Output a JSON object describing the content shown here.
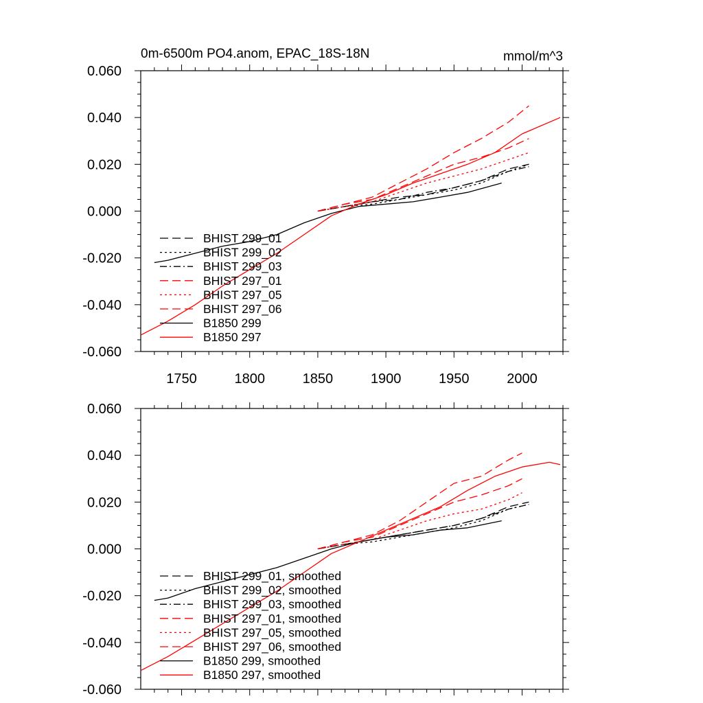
{
  "colors": {
    "black": "#000000",
    "red": "#ff0000",
    "background": "#ffffff"
  },
  "chart_data": [
    {
      "type": "line",
      "title": "0m-6500m PO4.anom, EPAC_18S-18N",
      "units": "mmol/m^3",
      "xlim": [
        1720,
        2030
      ],
      "ylim": [
        -0.06,
        0.06
      ],
      "xticks": [
        1750,
        1800,
        1850,
        1900,
        1950,
        2000
      ],
      "xtick_labels": [
        "1750",
        "1800",
        "1850",
        "1900",
        "1950",
        "2000"
      ],
      "yticks": [
        -0.06,
        -0.04,
        -0.02,
        0.0,
        0.02,
        0.04,
        0.06
      ],
      "ytick_labels": [
        "-0.060",
        "-0.040",
        "-0.020",
        "0.000",
        "0.020",
        "0.040",
        "0.060"
      ],
      "grid": false,
      "legend_position": "bottom-left",
      "series": [
        {
          "name": "BHIST 299_01",
          "color": "#000000",
          "dash": "long-dash",
          "x": [
            1850,
            1870,
            1890,
            1910,
            1930,
            1950,
            1970,
            1990,
            2005
          ],
          "y": [
            0.0,
            0.002,
            0.004,
            0.006,
            0.007,
            0.01,
            0.013,
            0.018,
            0.02
          ]
        },
        {
          "name": "BHIST 299_02",
          "color": "#000000",
          "dash": "dot",
          "x": [
            1850,
            1870,
            1890,
            1910,
            1930,
            1950,
            1970,
            1990,
            2005
          ],
          "y": [
            0.0,
            0.002,
            0.003,
            0.005,
            0.007,
            0.009,
            0.012,
            0.017,
            0.02
          ]
        },
        {
          "name": "BHIST 299_03",
          "color": "#000000",
          "dash": "dash-dot",
          "x": [
            1850,
            1870,
            1890,
            1910,
            1930,
            1950,
            1970,
            1990,
            2005
          ],
          "y": [
            0.0,
            0.002,
            0.004,
            0.005,
            0.008,
            0.01,
            0.013,
            0.017,
            0.019
          ]
        },
        {
          "name": "BHIST 297_01",
          "color": "#ff0000",
          "dash": "long-dash",
          "x": [
            1850,
            1870,
            1890,
            1910,
            1930,
            1950,
            1970,
            1990,
            2005
          ],
          "y": [
            0.0,
            0.003,
            0.006,
            0.012,
            0.018,
            0.025,
            0.031,
            0.038,
            0.045
          ]
        },
        {
          "name": "BHIST 297_05",
          "color": "#ff0000",
          "dash": "dot",
          "x": [
            1850,
            1870,
            1890,
            1910,
            1930,
            1950,
            1970,
            1990,
            2005
          ],
          "y": [
            0.0,
            0.002,
            0.004,
            0.008,
            0.012,
            0.015,
            0.018,
            0.022,
            0.025
          ]
        },
        {
          "name": "BHIST 297_06",
          "color": "#ff0000",
          "dash": "long-dash",
          "x": [
            1850,
            1870,
            1890,
            1910,
            1930,
            1950,
            1970,
            1990,
            2005
          ],
          "y": [
            0.0,
            0.003,
            0.005,
            0.01,
            0.015,
            0.02,
            0.023,
            0.027,
            0.031
          ]
        },
        {
          "name": "B1850 299",
          "color": "#000000",
          "dash": "solid",
          "x": [
            1730,
            1740,
            1760,
            1780,
            1800,
            1820,
            1840,
            1860,
            1880,
            1900,
            1920,
            1940,
            1960,
            1985
          ],
          "y": [
            -0.022,
            -0.021,
            -0.018,
            -0.015,
            -0.013,
            -0.01,
            -0.005,
            -0.001,
            0.002,
            0.003,
            0.004,
            0.006,
            0.008,
            0.012
          ]
        },
        {
          "name": "B1850 297",
          "color": "#ff0000",
          "dash": "solid",
          "x": [
            1720,
            1740,
            1760,
            1780,
            1800,
            1820,
            1840,
            1860,
            1880,
            1900,
            1920,
            1940,
            1960,
            1980,
            2000,
            2028
          ],
          "y": [
            -0.053,
            -0.047,
            -0.04,
            -0.032,
            -0.025,
            -0.018,
            -0.01,
            -0.002,
            0.003,
            0.007,
            0.012,
            0.016,
            0.02,
            0.025,
            0.033,
            0.04
          ]
        }
      ]
    },
    {
      "type": "line",
      "xlim": [
        1720,
        2030
      ],
      "ylim": [
        -0.06,
        0.06
      ],
      "yticks": [
        -0.06,
        -0.04,
        -0.02,
        0.0,
        0.02,
        0.04,
        0.06
      ],
      "ytick_labels": [
        "-0.060",
        "-0.040",
        "-0.020",
        "0.000",
        "0.020",
        "0.040",
        "0.060"
      ],
      "grid": false,
      "legend_position": "bottom-left",
      "series": [
        {
          "name": "BHIST 299_01, smoothed",
          "color": "#000000",
          "dash": "long-dash",
          "x": [
            1850,
            1870,
            1890,
            1910,
            1930,
            1950,
            1970,
            1990,
            2005
          ],
          "y": [
            0.0,
            0.002,
            0.004,
            0.006,
            0.008,
            0.01,
            0.013,
            0.018,
            0.02
          ]
        },
        {
          "name": "BHIST 299_02, smoothed",
          "color": "#000000",
          "dash": "dot",
          "x": [
            1850,
            1870,
            1890,
            1910,
            1930,
            1950,
            1970,
            1990,
            2005
          ],
          "y": [
            0.0,
            0.002,
            0.003,
            0.005,
            0.007,
            0.009,
            0.012,
            0.017,
            0.019
          ]
        },
        {
          "name": "BHIST 299_03, smoothed",
          "color": "#000000",
          "dash": "dash-dot",
          "x": [
            1850,
            1870,
            1890,
            1910,
            1930,
            1950,
            1970,
            1990,
            2005
          ],
          "y": [
            0.0,
            0.002,
            0.004,
            0.006,
            0.008,
            0.01,
            0.013,
            0.017,
            0.019
          ]
        },
        {
          "name": "BHIST 297_01, smoothed",
          "color": "#ff0000",
          "dash": "long-dash",
          "x": [
            1850,
            1870,
            1890,
            1910,
            1930,
            1950,
            1970,
            1990,
            2000
          ],
          "y": [
            0.0,
            0.003,
            0.006,
            0.012,
            0.02,
            0.028,
            0.031,
            0.038,
            0.041
          ]
        },
        {
          "name": "BHIST 297_05, smoothed",
          "color": "#ff0000",
          "dash": "dot",
          "x": [
            1850,
            1870,
            1890,
            1910,
            1930,
            1950,
            1970,
            1990,
            2000
          ],
          "y": [
            0.0,
            0.002,
            0.004,
            0.008,
            0.012,
            0.015,
            0.017,
            0.021,
            0.024
          ]
        },
        {
          "name": "BHIST 297_06, smoothed",
          "color": "#ff0000",
          "dash": "long-dash",
          "x": [
            1850,
            1870,
            1890,
            1910,
            1930,
            1950,
            1970,
            1990,
            2000
          ],
          "y": [
            0.0,
            0.003,
            0.005,
            0.01,
            0.015,
            0.02,
            0.023,
            0.027,
            0.03
          ]
        },
        {
          "name": "B1850 299, smoothed",
          "color": "#000000",
          "dash": "solid",
          "x": [
            1730,
            1740,
            1760,
            1780,
            1800,
            1820,
            1840,
            1860,
            1880,
            1900,
            1920,
            1940,
            1960,
            1985
          ],
          "y": [
            -0.022,
            -0.021,
            -0.017,
            -0.014,
            -0.011,
            -0.008,
            -0.004,
            0.0,
            0.003,
            0.005,
            0.006,
            0.008,
            0.009,
            0.012
          ]
        },
        {
          "name": "B1850 297, smoothed",
          "color": "#ff0000",
          "dash": "solid",
          "x": [
            1720,
            1740,
            1760,
            1780,
            1800,
            1820,
            1840,
            1860,
            1880,
            1900,
            1920,
            1940,
            1960,
            1980,
            2000,
            2020,
            2028
          ],
          "y": [
            -0.052,
            -0.046,
            -0.039,
            -0.032,
            -0.025,
            -0.018,
            -0.01,
            -0.002,
            0.003,
            0.008,
            0.013,
            0.018,
            0.025,
            0.031,
            0.035,
            0.037,
            0.036
          ]
        }
      ]
    }
  ]
}
